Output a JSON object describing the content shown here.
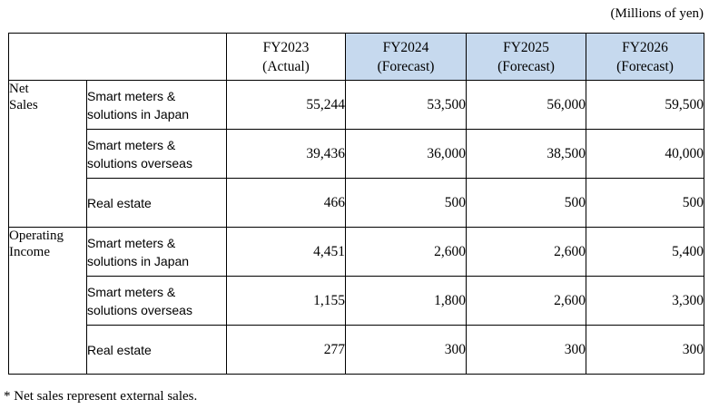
{
  "unit_label": "(Millions of yen)",
  "header": {
    "columns": [
      {
        "line1": "FY2023",
        "line2": "(Actual)"
      },
      {
        "line1": "FY2024",
        "line2": "(Forecast)"
      },
      {
        "line1": "FY2025",
        "line2": "(Forecast)"
      },
      {
        "line1": "FY2026",
        "line2": "(Forecast)"
      }
    ]
  },
  "groups": [
    {
      "category": [
        "Net",
        "Sales"
      ],
      "rows": [
        {
          "segment": [
            "Smart meters &",
            "solutions in Japan"
          ],
          "values": [
            "55,244",
            "53,500",
            "56,000",
            "59,500"
          ]
        },
        {
          "segment": [
            "Smart meters &",
            "solutions overseas"
          ],
          "values": [
            "39,436",
            "36,000",
            "38,500",
            "40,000"
          ]
        },
        {
          "segment": [
            "Real estate"
          ],
          "values": [
            "466",
            "500",
            "500",
            "500"
          ]
        }
      ]
    },
    {
      "category": [
        "Operating",
        "Income"
      ],
      "rows": [
        {
          "segment": [
            "Smart meters &",
            "solutions in Japan"
          ],
          "values": [
            "4,451",
            "2,600",
            "2,600",
            "5,400"
          ]
        },
        {
          "segment": [
            "Smart meters &",
            "solutions overseas"
          ],
          "values": [
            "1,155",
            "1,800",
            "2,600",
            "3,300"
          ]
        },
        {
          "segment": [
            "Real estate"
          ],
          "values": [
            "277",
            "300",
            "300",
            "300"
          ]
        }
      ]
    }
  ],
  "footnote": "* Net sales represent external sales.",
  "colors": {
    "forecast_header_bg": "#c6d9ee",
    "border": "#000000"
  }
}
